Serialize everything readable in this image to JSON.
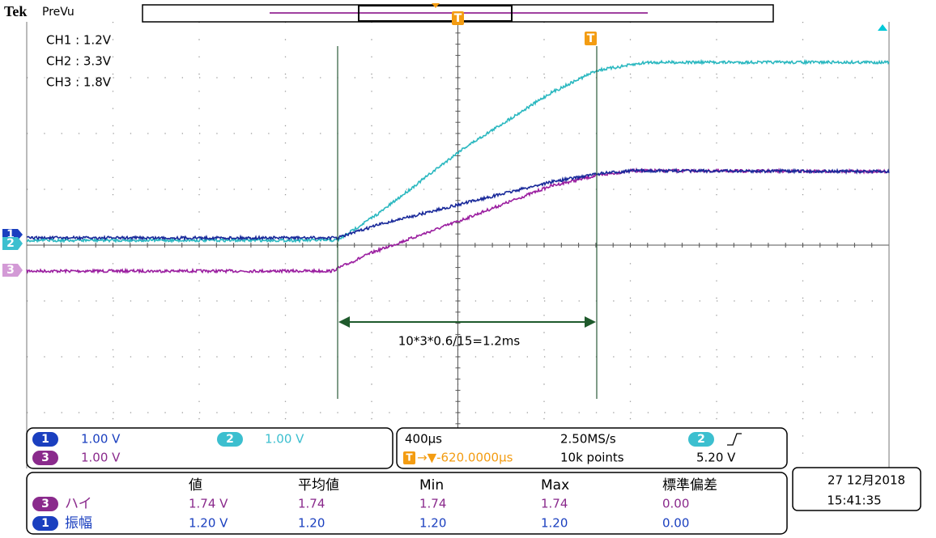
{
  "header": {
    "brand": "Tek",
    "mode": "PreVu"
  },
  "channel_notes": [
    "CH1 : 1.2V",
    "CH2 : 3.3V",
    "CH3 : 1.8V"
  ],
  "annotation": "10*3*0.6/15=1.2ms",
  "channel_markers": [
    "1",
    "2",
    "3"
  ],
  "trigger_marker": "T",
  "vertical": [
    {
      "channel": "1",
      "scale": "1.00 V"
    },
    {
      "channel": "2",
      "scale": "1.00 V"
    },
    {
      "channel": "3",
      "scale": "1.00 V"
    }
  ],
  "horizontal": {
    "scale": "400µs",
    "sample_rate": "2.50MS/s",
    "trigger_channel": "2",
    "position": "→▼-620.0000µs",
    "record": "10k points",
    "trigger_level": "5.20 V"
  },
  "measurements": {
    "headers": [
      "値",
      "平均値",
      "Min",
      "Max",
      "標準偏差"
    ],
    "rows": [
      {
        "channel": "3",
        "name": "ハイ",
        "values": [
          "1.74 V",
          "1.74",
          "1.74",
          "1.74",
          "0.00"
        ]
      },
      {
        "channel": "1",
        "name": "振幅",
        "values": [
          "1.20 V",
          "1.20",
          "1.20",
          "1.20",
          "0.00"
        ]
      }
    ]
  },
  "datetime": {
    "date": "27 12月2018",
    "time": "15:41:35"
  }
}
